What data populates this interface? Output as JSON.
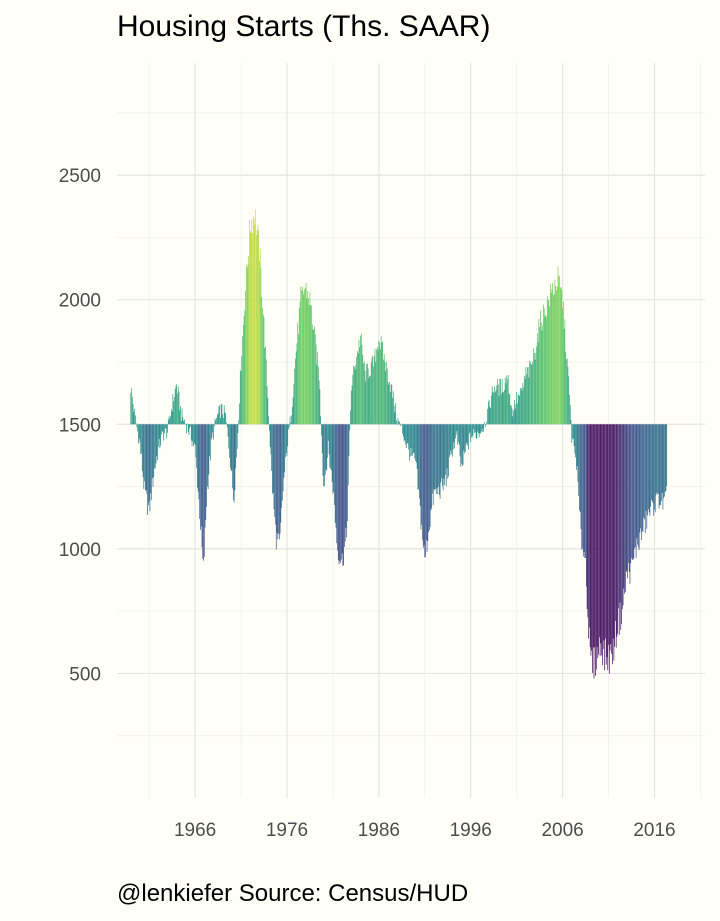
{
  "title": "Housing Starts (Ths. SAAR)",
  "caption": "@lenkiefer Source: Census/HUD",
  "chart_data": {
    "type": "bar",
    "baseline": 1500,
    "ylim": [
      0,
      2950
    ],
    "xlim": [
      1957.5,
      2021.5
    ],
    "y_ticks": [
      500,
      1000,
      1500,
      2000,
      2500
    ],
    "y_tick_labels": [
      "500",
      "1000",
      "1500",
      "2000",
      "2500"
    ],
    "x_ticks": [
      1966,
      1976,
      1986,
      1996,
      2006,
      2016
    ],
    "x_tick_labels": [
      "1966",
      "1976",
      "1986",
      "1996",
      "2006",
      "2016"
    ],
    "grid": true,
    "legend": "none",
    "color_scale": "viridis",
    "color_scale_stops": [
      "#440154",
      "#3b528b",
      "#21908c",
      "#5dc963",
      "#fde725"
    ],
    "x_start": 1959.0,
    "frequency": "monthly",
    "anchors": [
      [
        1959.0,
        1650
      ],
      [
        1959.5,
        1520
      ],
      [
        1960.0,
        1420
      ],
      [
        1960.5,
        1230
      ],
      [
        1961.0,
        1150
      ],
      [
        1961.5,
        1300
      ],
      [
        1962.0,
        1400
      ],
      [
        1962.5,
        1460
      ],
      [
        1963.0,
        1470
      ],
      [
        1963.5,
        1580
      ],
      [
        1964.0,
        1660
      ],
      [
        1964.5,
        1540
      ],
      [
        1965.0,
        1500
      ],
      [
        1965.5,
        1460
      ],
      [
        1966.0,
        1400
      ],
      [
        1966.5,
        1150
      ],
      [
        1966.9,
        900
      ],
      [
        1967.3,
        1230
      ],
      [
        1967.8,
        1430
      ],
      [
        1968.3,
        1520
      ],
      [
        1968.8,
        1560
      ],
      [
        1969.3,
        1540
      ],
      [
        1969.8,
        1370
      ],
      [
        1970.2,
        1200
      ],
      [
        1970.6,
        1420
      ],
      [
        1971.0,
        1750
      ],
      [
        1971.5,
        2050
      ],
      [
        1972.0,
        2300
      ],
      [
        1972.5,
        2350
      ],
      [
        1973.0,
        2200
      ],
      [
        1973.5,
        1900
      ],
      [
        1974.0,
        1550
      ],
      [
        1974.4,
        1250
      ],
      [
        1974.8,
        1050
      ],
      [
        1975.2,
        1000
      ],
      [
        1975.6,
        1250
      ],
      [
        1976.0,
        1400
      ],
      [
        1976.5,
        1560
      ],
      [
        1977.0,
        1800
      ],
      [
        1977.5,
        2000
      ],
      [
        1978.0,
        2050
      ],
      [
        1978.5,
        2000
      ],
      [
        1979.0,
        1850
      ],
      [
        1979.5,
        1700
      ],
      [
        1980.0,
        1250
      ],
      [
        1980.5,
        1400
      ],
      [
        1981.0,
        1250
      ],
      [
        1981.5,
        1000
      ],
      [
        1982.0,
        950
      ],
      [
        1982.5,
        1050
      ],
      [
        1983.0,
        1650
      ],
      [
        1983.5,
        1760
      ],
      [
        1984.0,
        1850
      ],
      [
        1984.5,
        1700
      ],
      [
        1985.0,
        1720
      ],
      [
        1985.5,
        1750
      ],
      [
        1986.0,
        1850
      ],
      [
        1986.5,
        1780
      ],
      [
        1987.0,
        1700
      ],
      [
        1987.5,
        1620
      ],
      [
        1988.0,
        1520
      ],
      [
        1988.5,
        1480
      ],
      [
        1989.0,
        1420
      ],
      [
        1989.5,
        1370
      ],
      [
        1990.0,
        1350
      ],
      [
        1990.5,
        1150
      ],
      [
        1991.0,
        950
      ],
      [
        1991.5,
        1100
      ],
      [
        1992.0,
        1220
      ],
      [
        1992.5,
        1230
      ],
      [
        1993.0,
        1250
      ],
      [
        1993.5,
        1300
      ],
      [
        1994.0,
        1400
      ],
      [
        1994.5,
        1450
      ],
      [
        1995.0,
        1320
      ],
      [
        1995.5,
        1400
      ],
      [
        1996.0,
        1450
      ],
      [
        1996.5,
        1460
      ],
      [
        1997.0,
        1470
      ],
      [
        1997.5,
        1500
      ],
      [
        1998.0,
        1570
      ],
      [
        1998.5,
        1650
      ],
      [
        1999.0,
        1650
      ],
      [
        1999.5,
        1650
      ],
      [
        2000.0,
        1700
      ],
      [
        2000.5,
        1550
      ],
      [
        2001.0,
        1600
      ],
      [
        2001.5,
        1620
      ],
      [
        2002.0,
        1700
      ],
      [
        2002.5,
        1720
      ],
      [
        2003.0,
        1800
      ],
      [
        2003.5,
        1900
      ],
      [
        2004.0,
        1950
      ],
      [
        2004.5,
        2000
      ],
      [
        2005.0,
        2050
      ],
      [
        2005.5,
        2080
      ],
      [
        2006.0,
        2000
      ],
      [
        2006.3,
        1850
      ],
      [
        2006.7,
        1650
      ],
      [
        2007.0,
        1450
      ],
      [
        2007.5,
        1350
      ],
      [
        2008.0,
        1050
      ],
      [
        2008.5,
        950
      ],
      [
        2009.0,
        550
      ],
      [
        2009.4,
        530
      ],
      [
        2009.8,
        580
      ],
      [
        2010.2,
        620
      ],
      [
        2010.6,
        570
      ],
      [
        2011.0,
        560
      ],
      [
        2011.5,
        590
      ],
      [
        2012.0,
        700
      ],
      [
        2012.5,
        750
      ],
      [
        2013.0,
        900
      ],
      [
        2013.5,
        920
      ],
      [
        2014.0,
        1000
      ],
      [
        2014.5,
        1050
      ],
      [
        2015.0,
        1100
      ],
      [
        2015.5,
        1150
      ],
      [
        2016.0,
        1180
      ],
      [
        2016.5,
        1200
      ],
      [
        2017.0,
        1180
      ],
      [
        2017.4,
        1220
      ]
    ]
  }
}
